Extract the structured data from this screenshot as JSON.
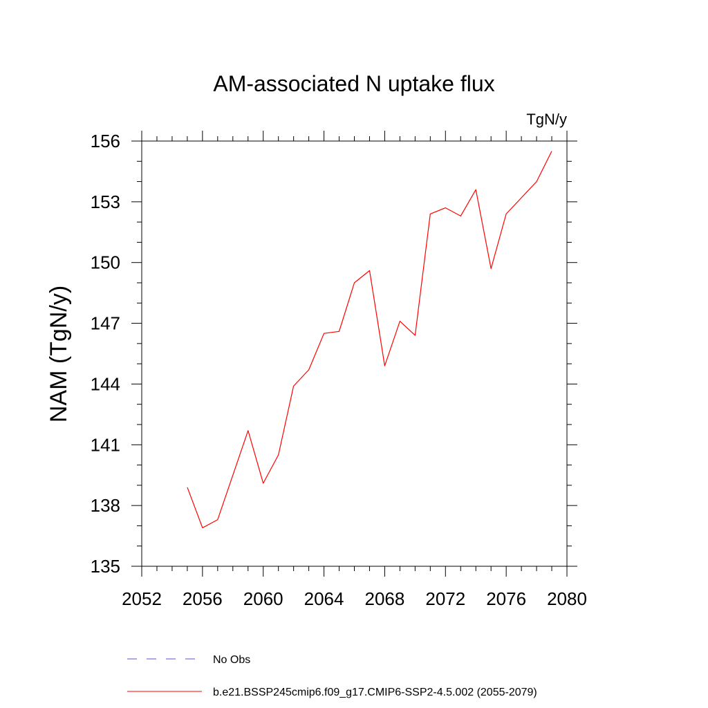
{
  "chart_data": {
    "type": "line",
    "title": "AM-associated N uptake flux",
    "units": "TgN/y",
    "ylabel": "NAM  (TgN/y)",
    "xlabel": "",
    "xlim": [
      2052,
      2080
    ],
    "ylim": [
      135,
      156
    ],
    "x_ticks": [
      2052,
      2056,
      2060,
      2064,
      2068,
      2072,
      2076,
      2080
    ],
    "y_ticks": [
      135,
      138,
      141,
      144,
      147,
      150,
      153,
      156
    ],
    "x_tick_labels": [
      "2052",
      "2056",
      "2060",
      "2064",
      "2068",
      "2072",
      "2076",
      "2080"
    ],
    "y_tick_labels": [
      "135",
      "138",
      "141",
      "144",
      "147",
      "150",
      "153",
      "156"
    ],
    "grid": false,
    "legend_position": "bottom",
    "series": [
      {
        "name": "b.e21.BSSP245cmip6.f09_g17.CMIP6-SSP2-4.5.002 (2055-2079)",
        "color": "#ff0000",
        "style": "solid",
        "x": [
          2055,
          2056,
          2057,
          2058,
          2059,
          2060,
          2061,
          2062,
          2063,
          2064,
          2065,
          2066,
          2067,
          2068,
          2069,
          2070,
          2071,
          2072,
          2073,
          2074,
          2075,
          2076,
          2077,
          2078,
          2079
        ],
        "values": [
          138.9,
          136.9,
          137.3,
          139.5,
          141.7,
          139.1,
          140.5,
          143.9,
          144.7,
          146.5,
          146.6,
          149.0,
          149.6,
          144.9,
          147.1,
          146.4,
          152.4,
          152.7,
          152.3,
          153.6,
          149.7,
          152.4,
          153.2,
          154.0,
          155.5
        ]
      }
    ],
    "legend": [
      {
        "label": "No Obs",
        "color": "#5a4fcf",
        "style": "dashed"
      },
      {
        "label": "b.e21.BSSP245cmip6.f09_g17.CMIP6-SSP2-4.5.002 (2055-2079)",
        "color": "#ff0000",
        "style": "solid"
      }
    ]
  }
}
